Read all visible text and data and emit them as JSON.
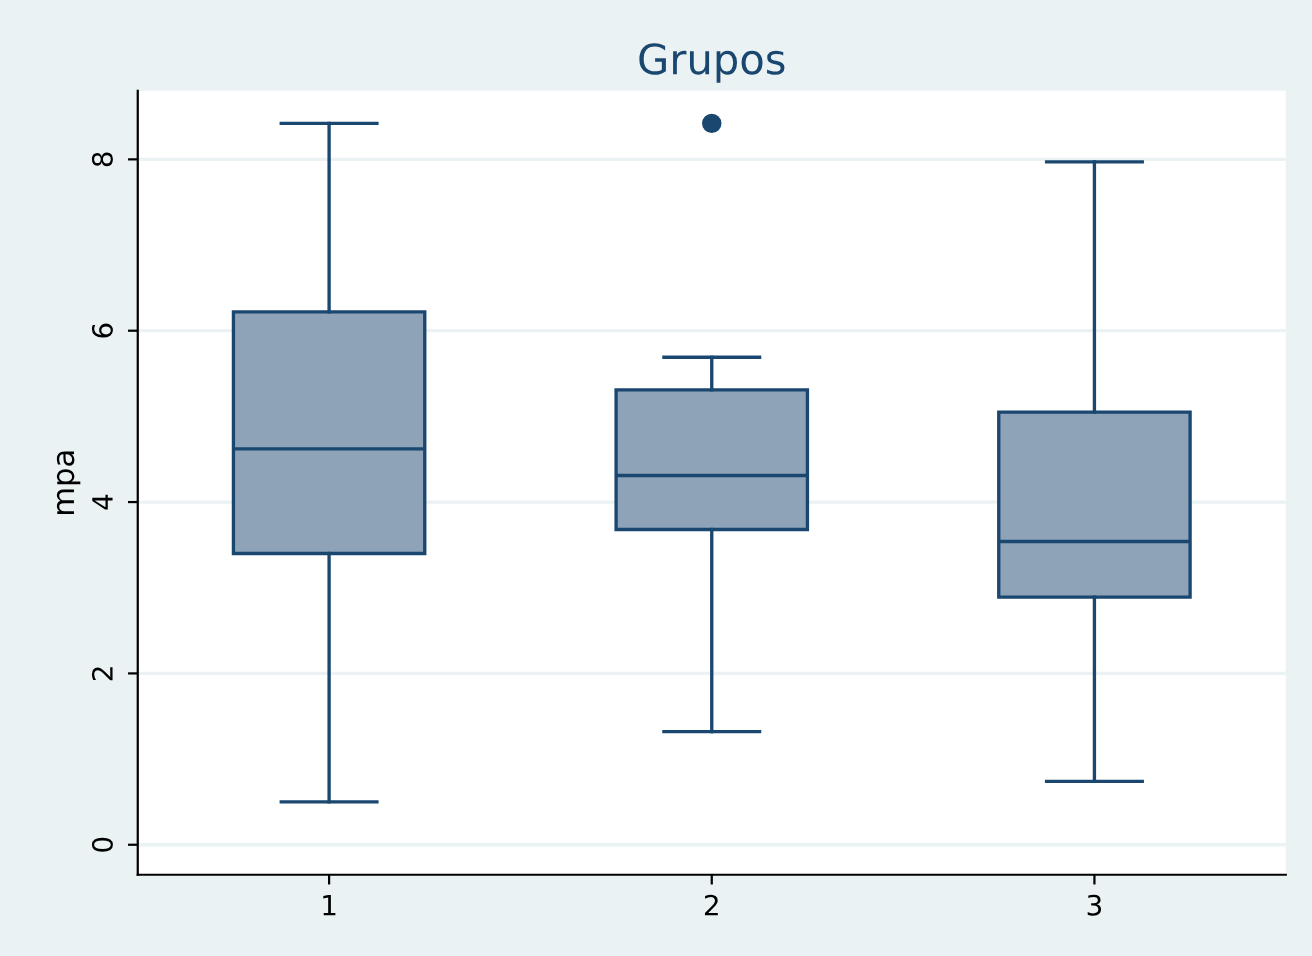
{
  "chart_data": {
    "type": "box",
    "title": "Grupos",
    "ylabel": "mpa",
    "categories": [
      "1",
      "2",
      "3"
    ],
    "boxes": [
      {
        "low": 0.5,
        "q1": 3.4,
        "median": 4.62,
        "q3": 6.22,
        "high": 8.42
      },
      {
        "low": 1.32,
        "q1": 3.68,
        "median": 4.31,
        "q3": 5.31,
        "high": 5.69,
        "outliers": [
          8.42
        ]
      },
      {
        "low": 0.74,
        "q1": 2.89,
        "median": 3.54,
        "q3": 5.05,
        "high": 7.97
      }
    ],
    "color": "#8fa3b8",
    "ylim": [
      -0.35,
      8.8
    ],
    "yticks": [
      0,
      2,
      4,
      6,
      8
    ],
    "grid": "y"
  }
}
